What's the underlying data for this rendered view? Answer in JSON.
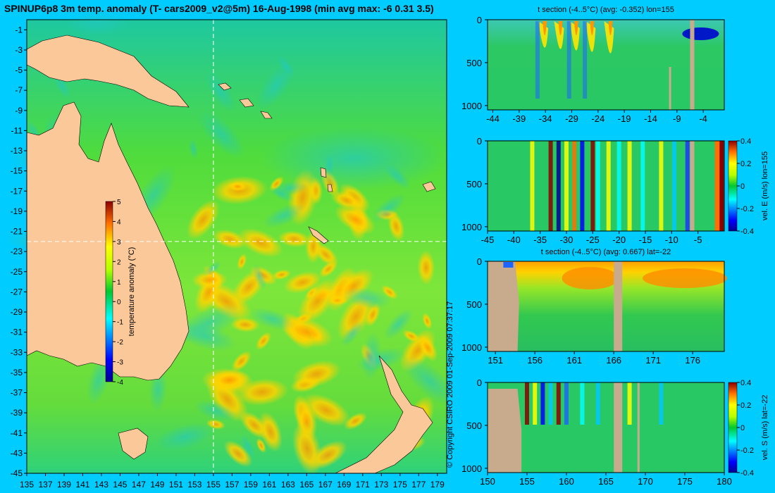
{
  "figure": {
    "background": "#00ccff",
    "copyright": "© Copyright CSIRO 2009   01-Sep-2009 07:37:17"
  },
  "chart_data": [
    {
      "id": "map",
      "type": "heatmap",
      "title": "SPINUP6p8 3m temp. anomaly (T- cars2009_v2@5m) 16-Aug-1998 (min avg max: -6 0.31 3.5)",
      "x_ticks": [
        "135",
        "137",
        "139",
        "141",
        "143",
        "145",
        "147",
        "149",
        "151",
        "153",
        "155",
        "157",
        "159",
        "161",
        "163",
        "165",
        "167",
        "169",
        "171",
        "173",
        "175",
        "177",
        "179"
      ],
      "y_ticks": [
        "-1",
        "-3",
        "-5",
        "-7",
        "-9",
        "-11",
        "-13",
        "-15",
        "-17",
        "-19",
        "-21",
        "-23",
        "-25",
        "-27",
        "-29",
        "-31",
        "-33",
        "-35",
        "-37",
        "-39",
        "-41",
        "-43",
        "-45"
      ],
      "xlim": [
        135,
        180
      ],
      "ylim": [
        -45,
        0
      ],
      "section_lines": {
        "lon": 155,
        "lat": -22
      },
      "colorbar": {
        "label": "temperature anomaly (°C)",
        "ticks": [
          "5",
          "4",
          "3",
          "2",
          "1",
          "0",
          "-1",
          "-2",
          "-3",
          "-4"
        ],
        "range": [
          -4,
          5
        ]
      },
      "land_color": "#fbc89a"
    },
    {
      "id": "panel_t_lon",
      "type": "heatmap",
      "title": "t section (-4..5°C) (avg: -0.352) lon=155",
      "x_ticks": [
        "-44",
        "-39",
        "-34",
        "-29",
        "-24",
        "-19",
        "-14",
        "-9",
        "-4"
      ],
      "y_ticks": [
        "0",
        "500",
        "1000"
      ],
      "xlim": [
        -45,
        0
      ],
      "ylim": [
        1050,
        0
      ]
    },
    {
      "id": "panel_vel_e",
      "type": "heatmap",
      "title": "",
      "x_ticks": [
        "-45",
        "-40",
        "-35",
        "-30",
        "-25",
        "-20",
        "-15",
        "-10",
        "-5"
      ],
      "y_ticks": [
        "0",
        "500",
        "1000"
      ],
      "xlim": [
        -45,
        0
      ],
      "ylim": [
        1050,
        0
      ],
      "colorbar": {
        "label": "vel. E (m/s) lon=155",
        "ticks": [
          "0.4",
          "0.2",
          "0",
          "-0.2",
          "-0.4"
        ],
        "range": [
          -0.4,
          0.4
        ]
      }
    },
    {
      "id": "panel_t_lat",
      "type": "heatmap",
      "title": "t section (-4..5°C) (avg: 0.667) lat=-22",
      "x_ticks": [
        "151",
        "156",
        "161",
        "166",
        "171",
        "176"
      ],
      "y_ticks": [
        "0",
        "500",
        "1000"
      ],
      "xlim": [
        150,
        180
      ],
      "ylim": [
        1050,
        0
      ]
    },
    {
      "id": "panel_vel_s",
      "type": "heatmap",
      "title": "",
      "x_ticks": [
        "150",
        "155",
        "160",
        "165",
        "170",
        "175",
        "180"
      ],
      "y_ticks": [
        "0",
        "500",
        "1000"
      ],
      "xlim": [
        150,
        180
      ],
      "ylim": [
        1050,
        0
      ],
      "colorbar": {
        "label": "vel. S (m/s) lat=-22",
        "ticks": [
          "0.4",
          "0.2",
          "0",
          "-0.2",
          "-0.4"
        ],
        "range": [
          -0.4,
          0.4
        ]
      }
    }
  ]
}
